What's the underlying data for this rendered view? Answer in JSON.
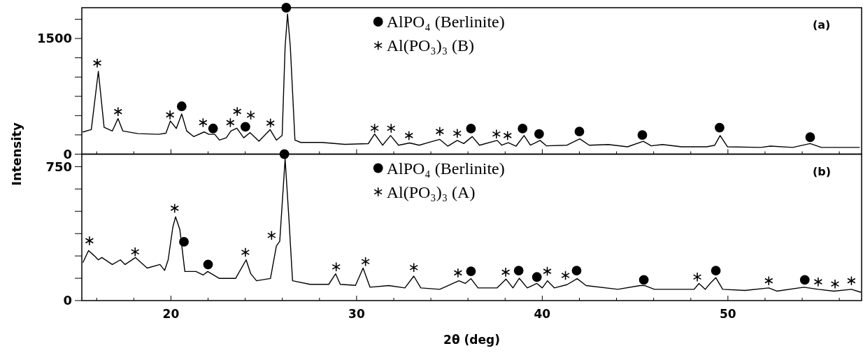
{
  "chart_data": [
    {
      "type": "line",
      "ylabel": "Intensity",
      "xlim": [
        15.2,
        57.2
      ],
      "ylim": [
        0,
        1900
      ],
      "xticks": [
        {
          "value": 16,
          "label": null
        },
        {
          "value": 18,
          "label": null
        },
        20,
        {
          "value": 22,
          "label": null
        },
        {
          "value": 24,
          "label": null
        },
        {
          "value": 26,
          "label": null
        },
        {
          "value": 28,
          "label": null
        },
        30,
        {
          "value": 32,
          "label": null
        },
        {
          "value": 34,
          "label": null
        },
        {
          "value": 36,
          "label": null
        },
        {
          "value": 38,
          "label": null
        },
        40,
        {
          "value": 42,
          "label": null
        },
        {
          "value": 44,
          "label": null
        },
        {
          "value": 46,
          "label": null
        },
        {
          "value": 48,
          "label": null
        },
        50,
        {
          "value": 52,
          "label": null
        },
        {
          "value": 54,
          "label": null
        },
        {
          "value": 56,
          "label": null
        }
      ],
      "yticks": [
        0,
        {
          "value": 250,
          "label": null
        },
        {
          "value": 500,
          "label": null
        },
        {
          "value": 750,
          "label": null
        },
        {
          "value": 1000,
          "label": null
        },
        {
          "value": 1250,
          "label": null
        },
        1500,
        {
          "value": 1750,
          "label": null
        }
      ],
      "tick_labels": "y",
      "legend": "top",
      "annotations": [
        "(a)"
      ],
      "series": [
        {
          "color": "#000000",
          "x": [
            15.27,
            15.71,
            16.09,
            16.4,
            16.84,
            17.15,
            17.41,
            18.22,
            19.35,
            19.73,
            19.97,
            20.29,
            20.58,
            20.85,
            21.23,
            21.79,
            22.04,
            22.36,
            22.61,
            22.98,
            23.23,
            23.55,
            23.92,
            24.26,
            24.74,
            25.34,
            25.68,
            25.99,
            26.15,
            26.28,
            26.43,
            26.68,
            26.99,
            28.12,
            29.37,
            30.63,
            30.97,
            31.4,
            31.83,
            32.26,
            32.86,
            33.37,
            33.97,
            34.48,
            34.91,
            35.42,
            35.77,
            36.23,
            36.62,
            37.57,
            37.82,
            38.17,
            38.59,
            39.02,
            39.36,
            39.88,
            40.22,
            41.33,
            42.02,
            42.53,
            43.56,
            44.59,
            45.44,
            45.87,
            46.47,
            47.5,
            48.86,
            49.29,
            49.58,
            49.98,
            51.78,
            52.29,
            53.49,
            54.43,
            55.03,
            57.08
          ],
          "values": [
            288,
            318,
            1075,
            348,
            300,
            461,
            300,
            266,
            257,
            272,
            430,
            333,
            521,
            300,
            227,
            288,
            257,
            257,
            182,
            212,
            300,
            336,
            212,
            279,
            167,
            318,
            182,
            242,
            1394,
            1818,
            1394,
            182,
            152,
            152,
            127,
            136,
            261,
            116,
            241,
            116,
            145,
            116,
            158,
            191,
            104,
            178,
            137,
            228,
            116,
            178,
            116,
            149,
            104,
            241,
            116,
            178,
            108,
            116,
            199,
            116,
            125,
            95,
            166,
            108,
            125,
            95,
            95,
            116,
            241,
            95,
            87,
            104,
            87,
            137,
            87,
            87
          ]
        },
        {
          "type": "scatter",
          "name": "AlPO₄ (Berlinite)",
          "color": "#000000",
          "marker": "circle",
          "x": [
            20.58,
            22.27,
            24.01,
            26.21,
            36.16,
            38.94,
            39.83,
            42.0,
            45.39,
            49.55,
            54.43
          ],
          "values": [
            621,
            333,
            355,
            1900,
            332,
            332,
            261,
            294,
            249,
            344,
            220
          ]
        },
        {
          "type": "scatter",
          "name": "Al(PO₃)₃ (B)",
          "color": "#000000",
          "marker": "cross",
          "x": [
            16.03,
            17.15,
            19.95,
            21.73,
            23.2,
            23.57,
            24.3,
            25.36,
            30.97,
            31.86,
            32.82,
            34.48,
            35.42,
            37.53,
            38.13
          ],
          "values": [
            1182,
            552,
            509,
            409,
            409,
            554,
            506,
            403,
            336,
            336,
            241,
            294,
            270,
            261,
            241
          ]
        }
      ]
    },
    {
      "type": "line",
      "xlabel": "2θ (deg)",
      "xlim": [
        15.2,
        57.2
      ],
      "ylim": [
        0,
        820
      ],
      "xticks": [
        {
          "value": 16,
          "label": null
        },
        {
          "value": 18,
          "label": null
        },
        20,
        {
          "value": 22,
          "label": null
        },
        {
          "value": 24,
          "label": null
        },
        {
          "value": 26,
          "label": null
        },
        {
          "value": 28,
          "label": null
        },
        30,
        {
          "value": 32,
          "label": null
        },
        {
          "value": 34,
          "label": null
        },
        {
          "value": 36,
          "label": null
        },
        {
          "value": 38,
          "label": null
        },
        40,
        {
          "value": 42,
          "label": null
        },
        {
          "value": 44,
          "label": null
        },
        {
          "value": 46,
          "label": null
        },
        {
          "value": 48,
          "label": null
        },
        50,
        {
          "value": 52,
          "label": null
        },
        {
          "value": 54,
          "label": null
        },
        {
          "value": 56,
          "label": null
        }
      ],
      "yticks": [
        0,
        {
          "value": 125,
          "label": null
        },
        {
          "value": 250,
          "label": null
        },
        {
          "value": 375,
          "label": null
        },
        {
          "value": 500,
          "label": null
        },
        {
          "value": 625,
          "label": null
        },
        750
      ],
      "legend": "top",
      "annotations": [
        "(b)"
      ],
      "series": [
        {
          "color": "#000000",
          "x": [
            15.27,
            15.56,
            15.84,
            16.09,
            16.28,
            16.84,
            17.28,
            17.53,
            18.09,
            18.72,
            19.41,
            19.66,
            19.85,
            20.1,
            20.25,
            20.48,
            20.75,
            21.35,
            21.73,
            21.98,
            22.61,
            23.48,
            24.05,
            24.3,
            24.61,
            25.36,
            25.68,
            25.86,
            26.15,
            26.36,
            26.55,
            27.49,
            28.5,
            28.87,
            29.12,
            29.94,
            30.35,
            30.72,
            31.74,
            32.6,
            33.08,
            33.46,
            34.48,
            35.51,
            35.85,
            36.16,
            36.54,
            37.57,
            38.05,
            38.42,
            38.76,
            39.19,
            39.71,
            40.0,
            40.28,
            40.65,
            41.33,
            41.88,
            42.36,
            44.07,
            45.27,
            45.53,
            46.04,
            47.5,
            48.18,
            48.44,
            48.78,
            49.04,
            49.35,
            49.72,
            50.92,
            52.2,
            52.63,
            54.09,
            54.86,
            55.71,
            56.65,
            57.15
          ],
          "values": [
            215,
            280,
            254,
            228,
            241,
            202,
            228,
            202,
            241,
            182,
            202,
            169,
            228,
            410,
            469,
            397,
            163,
            163,
            143,
            163,
            124,
            124,
            228,
            150,
            111,
            124,
            306,
            332,
            794,
            449,
            111,
            91,
            91,
            150,
            91,
            85,
            182,
            75,
            84,
            71,
            137,
            71,
            63,
            111,
            96,
            123,
            71,
            71,
            120,
            71,
            125,
            71,
            96,
            71,
            111,
            71,
            89,
            123,
            84,
            63,
            84,
            84,
            63,
            63,
            63,
            96,
            63,
            96,
            128,
            63,
            57,
            71,
            53,
            75,
            63,
            53,
            63,
            47
          ]
        },
        {
          "type": "scatter",
          "name": "AlPO₄ (Berlinite)",
          "color": "#000000",
          "marker": "circle",
          "x": [
            20.7,
            22.0,
            26.11,
            36.16,
            38.73,
            39.71,
            41.85,
            45.47,
            49.35,
            54.14
          ],
          "values": [
            329,
            202,
            820,
            164,
            168,
            132,
            168,
            116,
            168,
            116
          ]
        },
        {
          "type": "scatter",
          "name": "Al(PO₃)₃ (A)",
          "color": "#000000",
          "marker": "cross",
          "x": [
            15.61,
            18.07,
            20.2,
            24.01,
            25.42,
            28.9,
            30.48,
            33.08,
            35.46,
            38.03,
            40.27,
            41.25,
            48.35,
            52.2,
            54.86,
            55.77,
            56.65
          ],
          "values": [
            335,
            273,
            517,
            270,
            365,
            189,
            218,
            185,
            155,
            159,
            164,
            141,
            132,
            111,
            105,
            93,
            111
          ]
        }
      ]
    }
  ]
}
